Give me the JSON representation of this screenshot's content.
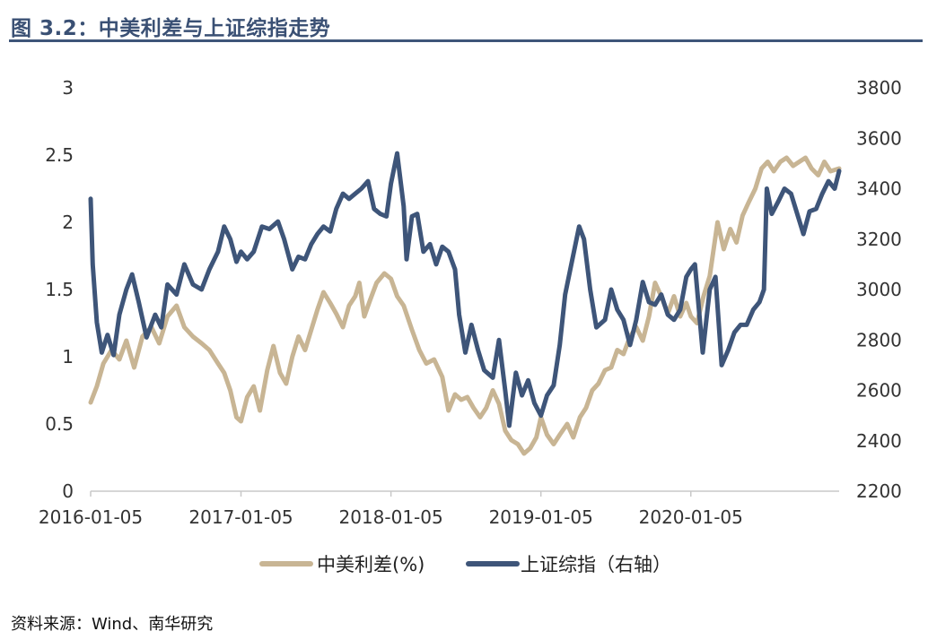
{
  "figure": {
    "title": "图 3.2：中美利差与上证综指走势",
    "source": "资料来源：Wind、南华研究"
  },
  "colors": {
    "title": "#3a5074",
    "spread": "#c8b594",
    "index": "#3e5579"
  },
  "chart_data": {
    "type": "line",
    "x_tick_labels": [
      "2016-01-05",
      "2017-01-05",
      "2018-01-05",
      "2019-01-05",
      "2020-01-05"
    ],
    "x_range": [
      "2016-01-05",
      "2020-12-31"
    ],
    "y_left": {
      "ticks": [
        "0",
        "0.5",
        "1",
        "1.5",
        "2",
        "2.5",
        "3"
      ],
      "ylim": [
        0,
        3
      ]
    },
    "y_right": {
      "ticks": [
        "2200",
        "2400",
        "2600",
        "2800",
        "3000",
        "3200",
        "3400",
        "3600",
        "3800"
      ],
      "ylim": [
        2200,
        3800
      ]
    },
    "legend_position": "bottom",
    "series": [
      {
        "name": "中美利差(%)",
        "axis": "left",
        "color": "#c8b594",
        "points": [
          [
            "2016-01-05",
            0.66
          ],
          [
            "2016-01-20",
            0.78
          ],
          [
            "2016-02-05",
            0.95
          ],
          [
            "2016-02-25",
            1.05
          ],
          [
            "2016-03-15",
            0.98
          ],
          [
            "2016-04-01",
            1.12
          ],
          [
            "2016-04-20",
            0.92
          ],
          [
            "2016-05-10",
            1.15
          ],
          [
            "2016-06-01",
            1.22
          ],
          [
            "2016-06-20",
            1.1
          ],
          [
            "2016-07-10",
            1.3
          ],
          [
            "2016-08-01",
            1.38
          ],
          [
            "2016-08-20",
            1.22
          ],
          [
            "2016-09-10",
            1.15
          ],
          [
            "2016-10-01",
            1.1
          ],
          [
            "2016-10-20",
            1.05
          ],
          [
            "2016-11-10",
            0.95
          ],
          [
            "2016-11-25",
            0.88
          ],
          [
            "2016-12-10",
            0.75
          ],
          [
            "2016-12-25",
            0.55
          ],
          [
            "2017-01-05",
            0.52
          ],
          [
            "2017-01-20",
            0.7
          ],
          [
            "2017-02-05",
            0.78
          ],
          [
            "2017-02-20",
            0.6
          ],
          [
            "2017-03-10",
            0.9
          ],
          [
            "2017-03-25",
            1.08
          ],
          [
            "2017-04-10",
            0.88
          ],
          [
            "2017-04-25",
            0.8
          ],
          [
            "2017-05-10",
            1.0
          ],
          [
            "2017-05-25",
            1.15
          ],
          [
            "2017-06-10",
            1.05
          ],
          [
            "2017-06-25",
            1.2
          ],
          [
            "2017-07-10",
            1.35
          ],
          [
            "2017-07-25",
            1.48
          ],
          [
            "2017-08-10",
            1.4
          ],
          [
            "2017-08-25",
            1.32
          ],
          [
            "2017-09-10",
            1.22
          ],
          [
            "2017-09-25",
            1.38
          ],
          [
            "2017-10-10",
            1.45
          ],
          [
            "2017-10-20",
            1.55
          ],
          [
            "2017-11-01",
            1.3
          ],
          [
            "2017-11-15",
            1.42
          ],
          [
            "2017-12-01",
            1.55
          ],
          [
            "2017-12-20",
            1.62
          ],
          [
            "2018-01-05",
            1.58
          ],
          [
            "2018-01-20",
            1.45
          ],
          [
            "2018-02-05",
            1.38
          ],
          [
            "2018-02-25",
            1.2
          ],
          [
            "2018-03-15",
            1.05
          ],
          [
            "2018-04-01",
            0.95
          ],
          [
            "2018-04-20",
            0.98
          ],
          [
            "2018-05-10",
            0.85
          ],
          [
            "2018-05-25",
            0.6
          ],
          [
            "2018-06-10",
            0.72
          ],
          [
            "2018-06-25",
            0.68
          ],
          [
            "2018-07-10",
            0.7
          ],
          [
            "2018-07-25",
            0.62
          ],
          [
            "2018-08-10",
            0.55
          ],
          [
            "2018-08-25",
            0.62
          ],
          [
            "2018-09-10",
            0.75
          ],
          [
            "2018-09-25",
            0.65
          ],
          [
            "2018-10-10",
            0.45
          ],
          [
            "2018-10-25",
            0.38
          ],
          [
            "2018-11-10",
            0.35
          ],
          [
            "2018-11-25",
            0.28
          ],
          [
            "2018-12-10",
            0.32
          ],
          [
            "2018-12-25",
            0.4
          ],
          [
            "2019-01-05",
            0.55
          ],
          [
            "2019-01-20",
            0.42
          ],
          [
            "2019-02-05",
            0.35
          ],
          [
            "2019-02-20",
            0.42
          ],
          [
            "2019-03-10",
            0.5
          ],
          [
            "2019-03-25",
            0.4
          ],
          [
            "2019-04-10",
            0.55
          ],
          [
            "2019-04-25",
            0.62
          ],
          [
            "2019-05-10",
            0.75
          ],
          [
            "2019-05-25",
            0.8
          ],
          [
            "2019-06-10",
            0.9
          ],
          [
            "2019-06-25",
            0.92
          ],
          [
            "2019-07-10",
            1.05
          ],
          [
            "2019-07-25",
            1.02
          ],
          [
            "2019-08-10",
            1.15
          ],
          [
            "2019-08-25",
            1.22
          ],
          [
            "2019-09-10",
            1.12
          ],
          [
            "2019-09-25",
            1.3
          ],
          [
            "2019-10-10",
            1.55
          ],
          [
            "2019-10-25",
            1.45
          ],
          [
            "2019-11-10",
            1.32
          ],
          [
            "2019-11-25",
            1.45
          ],
          [
            "2019-12-10",
            1.3
          ],
          [
            "2019-12-25",
            1.4
          ],
          [
            "2020-01-05",
            1.3
          ],
          [
            "2020-01-20",
            1.25
          ],
          [
            "2020-02-05",
            1.45
          ],
          [
            "2020-02-20",
            1.6
          ],
          [
            "2020-03-10",
            2.0
          ],
          [
            "2020-03-25",
            1.8
          ],
          [
            "2020-04-10",
            1.95
          ],
          [
            "2020-04-25",
            1.85
          ],
          [
            "2020-05-10",
            2.05
          ],
          [
            "2020-05-25",
            2.15
          ],
          [
            "2020-06-10",
            2.25
          ],
          [
            "2020-06-25",
            2.4
          ],
          [
            "2020-07-10",
            2.45
          ],
          [
            "2020-07-25",
            2.38
          ],
          [
            "2020-08-10",
            2.45
          ],
          [
            "2020-08-25",
            2.48
          ],
          [
            "2020-09-10",
            2.42
          ],
          [
            "2020-09-25",
            2.45
          ],
          [
            "2020-10-10",
            2.48
          ],
          [
            "2020-10-25",
            2.4
          ],
          [
            "2020-11-10",
            2.35
          ],
          [
            "2020-11-25",
            2.45
          ],
          [
            "2020-12-10",
            2.38
          ],
          [
            "2020-12-31",
            2.4
          ]
        ]
      },
      {
        "name": "上证综指（右轴）",
        "axis": "right",
        "color": "#3e5579",
        "points": [
          [
            "2016-01-05",
            3360
          ],
          [
            "2016-01-10",
            3100
          ],
          [
            "2016-01-20",
            2870
          ],
          [
            "2016-02-01",
            2750
          ],
          [
            "2016-02-15",
            2820
          ],
          [
            "2016-03-01",
            2740
          ],
          [
            "2016-03-15",
            2900
          ],
          [
            "2016-04-01",
            3000
          ],
          [
            "2016-04-15",
            3060
          ],
          [
            "2016-05-01",
            2950
          ],
          [
            "2016-05-20",
            2810
          ],
          [
            "2016-06-10",
            2900
          ],
          [
            "2016-06-25",
            2850
          ],
          [
            "2016-07-10",
            3020
          ],
          [
            "2016-08-01",
            2980
          ],
          [
            "2016-08-20",
            3100
          ],
          [
            "2016-09-10",
            3020
          ],
          [
            "2016-10-01",
            3000
          ],
          [
            "2016-10-20",
            3080
          ],
          [
            "2016-11-10",
            3150
          ],
          [
            "2016-11-25",
            3250
          ],
          [
            "2016-12-10",
            3200
          ],
          [
            "2016-12-25",
            3110
          ],
          [
            "2017-01-05",
            3150
          ],
          [
            "2017-01-20",
            3120
          ],
          [
            "2017-02-05",
            3150
          ],
          [
            "2017-02-25",
            3250
          ],
          [
            "2017-03-15",
            3240
          ],
          [
            "2017-04-05",
            3270
          ],
          [
            "2017-04-20",
            3200
          ],
          [
            "2017-05-10",
            3080
          ],
          [
            "2017-05-25",
            3130
          ],
          [
            "2017-06-10",
            3120
          ],
          [
            "2017-06-25",
            3180
          ],
          [
            "2017-07-10",
            3220
          ],
          [
            "2017-07-25",
            3250
          ],
          [
            "2017-08-10",
            3230
          ],
          [
            "2017-08-25",
            3320
          ],
          [
            "2017-09-10",
            3380
          ],
          [
            "2017-09-25",
            3360
          ],
          [
            "2017-10-10",
            3380
          ],
          [
            "2017-10-25",
            3400
          ],
          [
            "2017-11-10",
            3430
          ],
          [
            "2017-11-25",
            3320
          ],
          [
            "2017-12-10",
            3300
          ],
          [
            "2017-12-25",
            3290
          ],
          [
            "2018-01-05",
            3420
          ],
          [
            "2018-01-20",
            3540
          ],
          [
            "2018-02-05",
            3330
          ],
          [
            "2018-02-12",
            3120
          ],
          [
            "2018-02-25",
            3290
          ],
          [
            "2018-03-10",
            3300
          ],
          [
            "2018-03-25",
            3150
          ],
          [
            "2018-04-10",
            3180
          ],
          [
            "2018-04-25",
            3100
          ],
          [
            "2018-05-10",
            3170
          ],
          [
            "2018-05-25",
            3150
          ],
          [
            "2018-06-10",
            3080
          ],
          [
            "2018-06-20",
            2900
          ],
          [
            "2018-07-05",
            2750
          ],
          [
            "2018-07-20",
            2860
          ],
          [
            "2018-08-05",
            2760
          ],
          [
            "2018-08-20",
            2680
          ],
          [
            "2018-09-10",
            2650
          ],
          [
            "2018-09-25",
            2800
          ],
          [
            "2018-10-10",
            2600
          ],
          [
            "2018-10-20",
            2460
          ],
          [
            "2018-11-05",
            2670
          ],
          [
            "2018-11-20",
            2580
          ],
          [
            "2018-12-05",
            2640
          ],
          [
            "2018-12-20",
            2550
          ],
          [
            "2019-01-05",
            2500
          ],
          [
            "2019-01-20",
            2580
          ],
          [
            "2019-02-05",
            2620
          ],
          [
            "2019-02-20",
            2780
          ],
          [
            "2019-03-05",
            2980
          ],
          [
            "2019-03-20",
            3100
          ],
          [
            "2019-04-08",
            3250
          ],
          [
            "2019-04-20",
            3200
          ],
          [
            "2019-05-05",
            3000
          ],
          [
            "2019-05-20",
            2850
          ],
          [
            "2019-06-10",
            2880
          ],
          [
            "2019-06-25",
            3000
          ],
          [
            "2019-07-10",
            2920
          ],
          [
            "2019-07-25",
            2880
          ],
          [
            "2019-08-10",
            2780
          ],
          [
            "2019-08-25",
            2880
          ],
          [
            "2019-09-10",
            3030
          ],
          [
            "2019-09-25",
            2950
          ],
          [
            "2019-10-10",
            2940
          ],
          [
            "2019-10-25",
            2980
          ],
          [
            "2019-11-10",
            2900
          ],
          [
            "2019-11-25",
            2880
          ],
          [
            "2019-12-10",
            2920
          ],
          [
            "2019-12-25",
            3050
          ],
          [
            "2020-01-05",
            3080
          ],
          [
            "2020-01-15",
            3100
          ],
          [
            "2020-02-03",
            2750
          ],
          [
            "2020-02-20",
            3000
          ],
          [
            "2020-03-05",
            3050
          ],
          [
            "2020-03-20",
            2700
          ],
          [
            "2020-04-05",
            2760
          ],
          [
            "2020-04-20",
            2830
          ],
          [
            "2020-05-05",
            2860
          ],
          [
            "2020-05-20",
            2860
          ],
          [
            "2020-06-05",
            2920
          ],
          [
            "2020-06-20",
            2950
          ],
          [
            "2020-07-01",
            3000
          ],
          [
            "2020-07-08",
            3400
          ],
          [
            "2020-07-20",
            3300
          ],
          [
            "2020-08-05",
            3350
          ],
          [
            "2020-08-20",
            3400
          ],
          [
            "2020-09-05",
            3380
          ],
          [
            "2020-09-20",
            3300
          ],
          [
            "2020-10-05",
            3220
          ],
          [
            "2020-10-20",
            3310
          ],
          [
            "2020-11-05",
            3320
          ],
          [
            "2020-11-20",
            3380
          ],
          [
            "2020-12-05",
            3430
          ],
          [
            "2020-12-20",
            3400
          ],
          [
            "2020-12-31",
            3470
          ]
        ]
      }
    ]
  }
}
